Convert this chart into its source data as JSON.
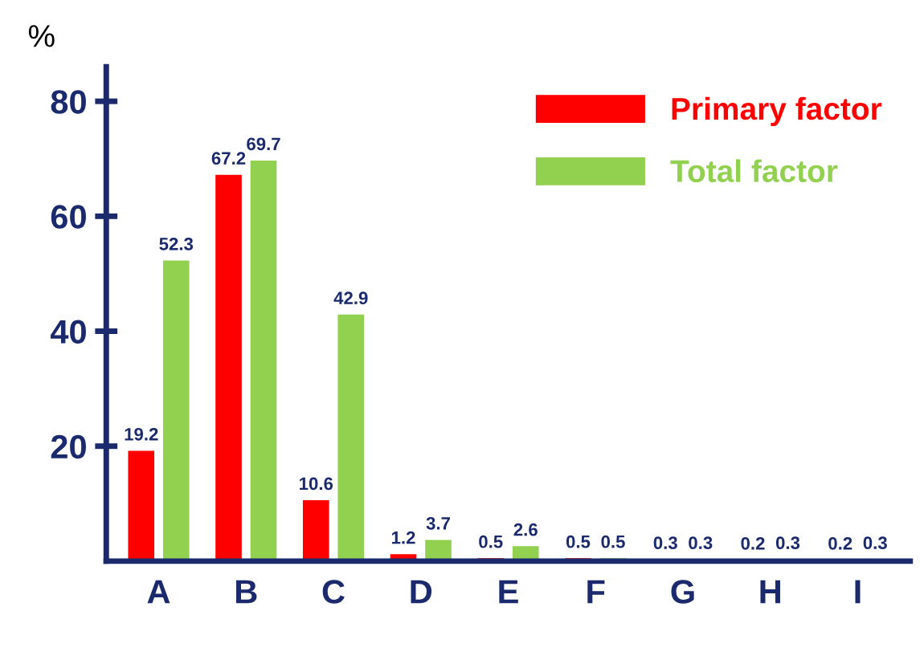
{
  "chart_data": {
    "type": "bar",
    "ylabel": "%",
    "categories": [
      "A",
      "B",
      "C",
      "D",
      "E",
      "F",
      "G",
      "H",
      "I"
    ],
    "series": [
      {
        "name": "Primary factor",
        "color": "#ff0000",
        "values": [
          19.2,
          67.2,
          10.6,
          1.2,
          0.5,
          0.5,
          0.3,
          0.2,
          0.2
        ]
      },
      {
        "name": "Total factor",
        "color": "#92d050",
        "values": [
          52.3,
          69.7,
          42.9,
          3.7,
          2.6,
          0.5,
          0.3,
          0.3,
          0.3
        ]
      }
    ],
    "ylim": [
      0,
      86
    ],
    "yticks": [
      20,
      40,
      60,
      80
    ],
    "data_labels": true,
    "legend": "top right",
    "grid": false
  }
}
